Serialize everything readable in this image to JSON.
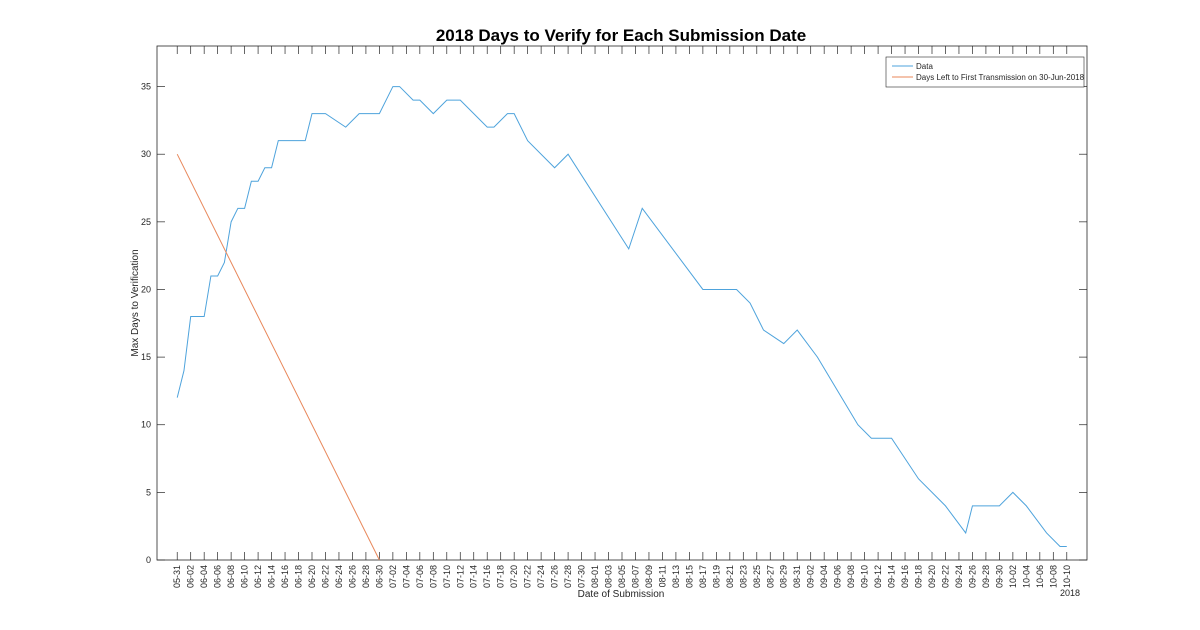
{
  "chart_data": {
    "type": "line",
    "title": "2018 Days to Verify for Each Submission Date",
    "x_label": "Date of Submission",
    "y_label": "Max Days to Verification",
    "x_year_label": "2018",
    "xlim": [
      "05-28",
      "10-13"
    ],
    "ylim": [
      0,
      38
    ],
    "yticks": [
      0,
      5,
      10,
      15,
      20,
      25,
      30,
      35
    ],
    "xticks": [
      "05-31",
      "06-02",
      "06-04",
      "06-06",
      "06-08",
      "06-10",
      "06-12",
      "06-14",
      "06-16",
      "06-18",
      "06-20",
      "06-22",
      "06-24",
      "06-26",
      "06-28",
      "06-30",
      "07-02",
      "07-04",
      "07-06",
      "07-08",
      "07-10",
      "07-12",
      "07-14",
      "07-16",
      "07-18",
      "07-20",
      "07-22",
      "07-24",
      "07-26",
      "07-28",
      "07-30",
      "08-01",
      "08-03",
      "08-05",
      "08-07",
      "08-09",
      "08-11",
      "08-13",
      "08-15",
      "08-17",
      "08-19",
      "08-21",
      "08-23",
      "08-25",
      "08-27",
      "08-29",
      "08-31",
      "09-02",
      "09-04",
      "09-06",
      "09-08",
      "09-10",
      "09-12",
      "09-14",
      "09-16",
      "09-18",
      "09-20",
      "09-22",
      "09-24",
      "09-26",
      "09-28",
      "09-30",
      "10-02",
      "10-04",
      "10-06",
      "10-08",
      "10-10"
    ],
    "legend_position": "northeast",
    "series": [
      {
        "name": "Data",
        "color": "#4ea3dc",
        "x": [
          "05-31",
          "06-01",
          "06-02",
          "06-04",
          "06-05",
          "06-06",
          "06-07",
          "06-08",
          "06-09",
          "06-10",
          "06-11",
          "06-12",
          "06-13",
          "06-14",
          "06-15",
          "06-19",
          "06-20",
          "06-22",
          "06-25",
          "06-27",
          "06-30",
          "07-02",
          "07-03",
          "07-05",
          "07-06",
          "07-08",
          "07-10",
          "07-12",
          "07-16",
          "07-17",
          "07-19",
          "07-20",
          "07-22",
          "07-26",
          "07-28",
          "08-06",
          "08-08",
          "08-17",
          "08-22",
          "08-24",
          "08-26",
          "08-29",
          "08-31",
          "09-03",
          "09-09",
          "09-11",
          "09-14",
          "09-18",
          "09-22",
          "09-25",
          "09-26",
          "09-30",
          "10-02",
          "10-04",
          "10-07",
          "10-09",
          "10-10"
        ],
        "values": [
          12,
          14,
          18,
          18,
          21,
          21,
          22,
          25,
          26,
          26,
          28,
          28,
          29,
          29,
          31,
          31,
          33,
          33,
          32,
          33,
          33,
          35,
          35,
          34,
          34,
          33,
          34,
          34,
          32,
          32,
          33,
          33,
          31,
          29,
          30,
          23,
          26,
          20,
          20,
          19,
          17,
          16,
          17,
          15,
          10,
          9,
          9,
          6,
          4,
          2,
          4,
          4,
          5,
          4,
          2,
          1,
          1
        ]
      },
      {
        "name": "Days Left to First Transmission on 30-Jun-2018",
        "color": "#e8875a",
        "x": [
          "05-31",
          "06-30"
        ],
        "values": [
          30,
          0
        ]
      }
    ]
  }
}
